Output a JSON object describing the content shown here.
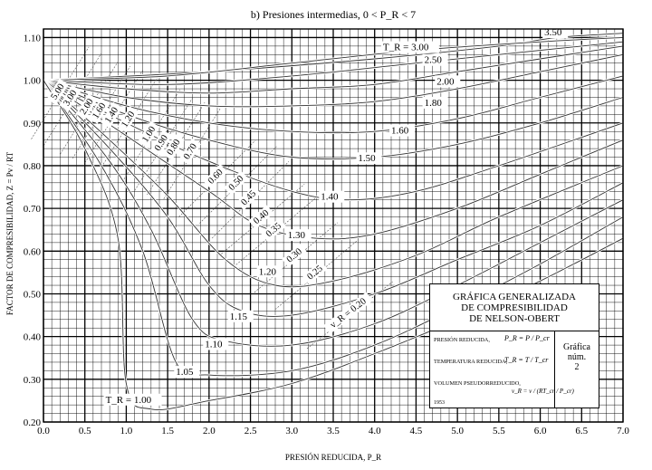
{
  "chart_data": {
    "type": "line",
    "title_prefix": "b)",
    "title": "Presiones intermedias, 0 < P_R < 7",
    "xlabel": "PRESIÓN REDUCIDA, P_R",
    "ylabel": "FACTOR DE COMPRESIBILIDAD, Z = Pv / RT",
    "xlim": [
      0,
      7
    ],
    "ylim": [
      0.2,
      1.12
    ],
    "x_ticks": [
      "0.0",
      "0.5",
      "1.0",
      "1.5",
      "2.0",
      "2.5",
      "3.0",
      "3.5",
      "4.0",
      "4.5",
      "5.0",
      "5.5",
      "6.0",
      "6.5",
      "7.0"
    ],
    "y_ticks": [
      "0.20",
      "0.30",
      "0.40",
      "0.50",
      "0.60",
      "0.70",
      "0.80",
      "0.90",
      "1.00",
      "1.10"
    ],
    "grid": true,
    "series": [
      {
        "name": "3.50",
        "points": [
          [
            0,
            1.0
          ],
          [
            2,
            1.02
          ],
          [
            4,
            1.05
          ],
          [
            5.5,
            1.08
          ],
          [
            6.2,
            1.1
          ],
          [
            7,
            1.11
          ]
        ]
      },
      {
        "name": "T_R = 3.00",
        "points": [
          [
            0,
            1.0
          ],
          [
            1.5,
            1.01
          ],
          [
            3,
            1.04
          ],
          [
            4.5,
            1.07
          ],
          [
            6,
            1.09
          ],
          [
            7,
            1.1
          ]
        ]
      },
      {
        "name": "2.50",
        "points": [
          [
            0,
            1.0
          ],
          [
            1.5,
            0.99
          ],
          [
            3,
            1.01
          ],
          [
            4.5,
            1.04
          ],
          [
            6,
            1.07
          ],
          [
            7,
            1.09
          ]
        ]
      },
      {
        "name": "2.00",
        "points": [
          [
            0,
            1.0
          ],
          [
            1,
            0.98
          ],
          [
            2,
            0.97
          ],
          [
            3,
            0.98
          ],
          [
            4,
            0.99
          ],
          [
            5,
            1.02
          ],
          [
            6,
            1.05
          ],
          [
            7,
            1.08
          ]
        ]
      },
      {
        "name": "1.80",
        "points": [
          [
            0,
            1.0
          ],
          [
            1,
            0.96
          ],
          [
            2,
            0.94
          ],
          [
            3,
            0.94
          ],
          [
            4,
            0.95
          ],
          [
            5,
            0.98
          ],
          [
            6,
            1.02
          ],
          [
            7,
            1.06
          ]
        ]
      },
      {
        "name": "1.60",
        "points": [
          [
            0,
            1.0
          ],
          [
            1,
            0.94
          ],
          [
            2,
            0.9
          ],
          [
            3,
            0.88
          ],
          [
            4,
            0.88
          ],
          [
            5,
            0.91
          ],
          [
            6,
            0.96
          ],
          [
            7,
            1.01
          ]
        ]
      },
      {
        "name": "1.50",
        "points": [
          [
            0,
            1.0
          ],
          [
            1,
            0.92
          ],
          [
            2,
            0.86
          ],
          [
            3,
            0.82
          ],
          [
            4,
            0.82
          ],
          [
            5,
            0.85
          ],
          [
            6,
            0.9
          ],
          [
            7,
            0.96
          ]
        ]
      },
      {
        "name": "1.40",
        "points": [
          [
            0,
            1.0
          ],
          [
            1,
            0.9
          ],
          [
            2,
            0.81
          ],
          [
            3,
            0.74
          ],
          [
            3.7,
            0.72
          ],
          [
            4.5,
            0.74
          ],
          [
            5.5,
            0.8
          ],
          [
            7,
            0.9
          ]
        ]
      },
      {
        "name": "1.30",
        "points": [
          [
            0,
            1.0
          ],
          [
            1,
            0.87
          ],
          [
            2,
            0.74
          ],
          [
            2.6,
            0.66
          ],
          [
            3.3,
            0.63
          ],
          [
            4,
            0.64
          ],
          [
            5,
            0.7
          ],
          [
            6,
            0.78
          ],
          [
            7,
            0.86
          ]
        ]
      },
      {
        "name": "1.20",
        "points": [
          [
            0,
            1.0
          ],
          [
            0.8,
            0.86
          ],
          [
            1.5,
            0.73
          ],
          [
            2.2,
            0.58
          ],
          [
            2.8,
            0.52
          ],
          [
            3.5,
            0.53
          ],
          [
            4.5,
            0.59
          ],
          [
            5.5,
            0.68
          ],
          [
            7,
            0.8
          ]
        ]
      },
      {
        "name": "1.15",
        "points": [
          [
            0,
            1.0
          ],
          [
            0.8,
            0.84
          ],
          [
            1.5,
            0.68
          ],
          [
            2,
            0.52
          ],
          [
            2.4,
            0.46
          ],
          [
            3,
            0.45
          ],
          [
            4,
            0.5
          ],
          [
            5,
            0.58
          ],
          [
            6,
            0.66
          ],
          [
            7,
            0.76
          ]
        ]
      },
      {
        "name": "1.10",
        "points": [
          [
            0,
            1.0
          ],
          [
            0.8,
            0.81
          ],
          [
            1.3,
            0.65
          ],
          [
            1.8,
            0.44
          ],
          [
            2.2,
            0.39
          ],
          [
            3,
            0.38
          ],
          [
            4,
            0.43
          ],
          [
            5,
            0.52
          ],
          [
            6,
            0.62
          ],
          [
            7,
            0.72
          ]
        ]
      },
      {
        "name": "1.05",
        "points": [
          [
            0,
            1.0
          ],
          [
            0.7,
            0.8
          ],
          [
            1.2,
            0.6
          ],
          [
            1.6,
            0.34
          ],
          [
            2,
            0.31
          ],
          [
            3,
            0.32
          ],
          [
            4,
            0.38
          ],
          [
            5,
            0.47
          ],
          [
            6,
            0.57
          ],
          [
            7,
            0.68
          ]
        ]
      },
      {
        "name": "T_R = 1.00",
        "points": [
          [
            0,
            1.0
          ],
          [
            0.5,
            0.84
          ],
          [
            0.9,
            0.63
          ],
          [
            1.0,
            0.29
          ],
          [
            1.3,
            0.23
          ],
          [
            2,
            0.25
          ],
          [
            3,
            0.29
          ],
          [
            4,
            0.36
          ],
          [
            5,
            0.44
          ],
          [
            6,
            0.53
          ],
          [
            7,
            0.63
          ]
        ]
      }
    ],
    "v_labels": [
      "5.00",
      "3.00",
      "2.00",
      "1.60",
      "1.40",
      "1.20",
      "1.00",
      "0.90",
      "0.80",
      "0.70",
      "0.60",
      "0.50",
      "0.45",
      "0.40",
      "0.35",
      "0.30",
      "0.25",
      "v_R = 0.20"
    ],
    "annotation_box": {
      "title_lines": [
        "GRÁFICA GENERALIZADA",
        "DE COMPRESIBILIDAD",
        "DE NELSON-OBERT"
      ],
      "definitions": [
        {
          "name": "PRESIÓN REDUCIDA,",
          "formula": "P_R = P / P_cr"
        },
        {
          "name": "TEMPERATURA REDUCIDA,",
          "formula": "T_R = T / T_cr"
        },
        {
          "name": "VOLUMEN PSEUDORREDUCIDO,",
          "formula": "v_R = v / (RT_cr / P_cr)"
        }
      ],
      "year": "1953",
      "chart_number_lines": [
        "Gráfica",
        "núm.",
        "2"
      ]
    }
  }
}
